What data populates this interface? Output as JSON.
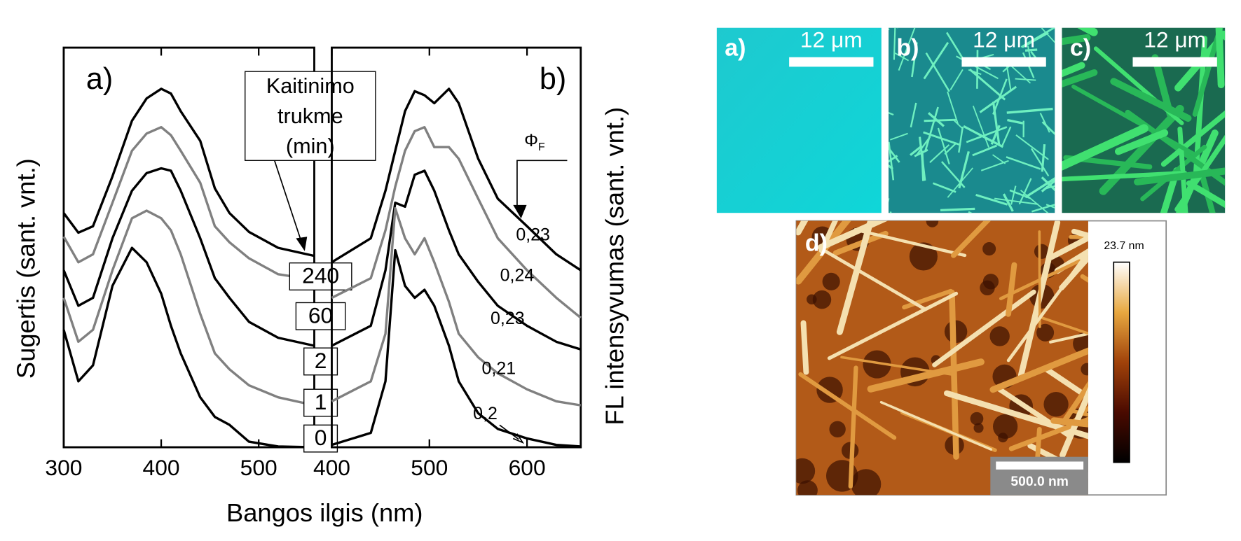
{
  "chart_data": [
    {
      "type": "line",
      "panel_label": "a)",
      "ylabel": "Sugertis (sant. vnt.)",
      "xlabel": "Bangos ilgis (nm)",
      "legend_title": [
        "Kaitinimo",
        "trukme",
        "(min)"
      ],
      "x": [
        300,
        315,
        330,
        350,
        370,
        385,
        400,
        410,
        420,
        440,
        455,
        470,
        490,
        520,
        557
      ],
      "xlim": [
        300,
        557
      ],
      "xticks": [
        300,
        400,
        500
      ],
      "ylim": [
        0,
        100
      ],
      "series": [
        {
          "name": "240",
          "color": "#000000",
          "values": [
            58.6,
            53.7,
            55.3,
            67.8,
            81.7,
            87.3,
            89.7,
            88.5,
            84.1,
            76.7,
            64.8,
            58.6,
            53.9,
            49.9,
            47.9
          ]
        },
        {
          "name": "60",
          "color": "#808080",
          "values": [
            52.7,
            46.3,
            48.3,
            61.2,
            74.2,
            78.5,
            80.1,
            78.1,
            74.2,
            66.2,
            55.3,
            51.3,
            47.3,
            43.3,
            41.9
          ]
        },
        {
          "name": "2",
          "color": "#000000",
          "values": [
            44.3,
            35.4,
            37.4,
            52.3,
            64.2,
            68.6,
            69.8,
            69.2,
            64.2,
            52.3,
            42.3,
            37.4,
            31.4,
            27.4,
            25.4
          ]
        },
        {
          "name": "1",
          "color": "#808080",
          "values": [
            37.4,
            26.4,
            29.4,
            44.3,
            57.3,
            59.2,
            57.3,
            54.3,
            48.3,
            33.4,
            23.5,
            19.5,
            15.5,
            12.5,
            10.5
          ]
        },
        {
          "name": "0",
          "color": "#000000",
          "values": [
            29.4,
            16.5,
            20.5,
            40.4,
            49.9,
            46.3,
            38.4,
            30.4,
            23.5,
            12.5,
            7.6,
            5.6,
            1.4,
            0.2,
            0
          ]
        }
      ]
    },
    {
      "type": "line",
      "panel_label": "b)",
      "ylabel": "FL intensyvumas (sant. vnt.)",
      "annotation_symbol": "Φ",
      "annotation_subscript": "F",
      "x": [
        400,
        440,
        455,
        465,
        475,
        485,
        495,
        505,
        520,
        530,
        550,
        570,
        600,
        630,
        655
      ],
      "xlim": [
        400,
        655
      ],
      "xticks": [
        400,
        500,
        600
      ],
      "ylim": [
        0,
        100
      ],
      "series": [
        {
          "color": "#000000",
          "label": "0,23",
          "values": [
            46.3,
            52.3,
            64.2,
            74.2,
            84.1,
            89.1,
            88.1,
            86.1,
            89.7,
            86.1,
            72.2,
            62.2,
            55.3,
            48.3,
            44.3
          ]
        },
        {
          "color": "#808080",
          "label": "0,24",
          "values": [
            37.4,
            42.3,
            54.3,
            65.2,
            74.2,
            79.1,
            80.1,
            75.1,
            75.1,
            72.2,
            62.2,
            52.3,
            44.3,
            37.4,
            32.4
          ]
        },
        {
          "color": "#000000",
          "label": "0,23",
          "values": [
            25.4,
            30.4,
            44.3,
            61.2,
            60.2,
            68.2,
            69.2,
            64.2,
            54.3,
            48.3,
            41.4,
            35.4,
            30.4,
            26.4,
            24.5
          ]
        },
        {
          "color": "#808080",
          "label": "0,21",
          "values": [
            11.5,
            16.5,
            28.4,
            59.8,
            52.3,
            48.3,
            52.3,
            46.3,
            36.4,
            28.4,
            22.5,
            18.5,
            14.5,
            11.5,
            10.5
          ]
        },
        {
          "color": "#000000",
          "label": "0,2",
          "values": [
            0.6,
            3.6,
            16.5,
            49.3,
            40.4,
            37.4,
            39.4,
            35.4,
            25.4,
            16.5,
            8.5,
            4.6,
            2.2,
            0.6,
            0.2
          ]
        }
      ]
    }
  ],
  "images": {
    "a": {
      "label": "a)",
      "scale": "12 μm"
    },
    "b": {
      "label": "b)",
      "scale": "12 μm"
    },
    "c": {
      "label": "c)",
      "scale": "12 μm"
    },
    "d": {
      "label": "d)",
      "scale": "500.0 nm",
      "colorbar_max": "23.7 nm"
    }
  }
}
